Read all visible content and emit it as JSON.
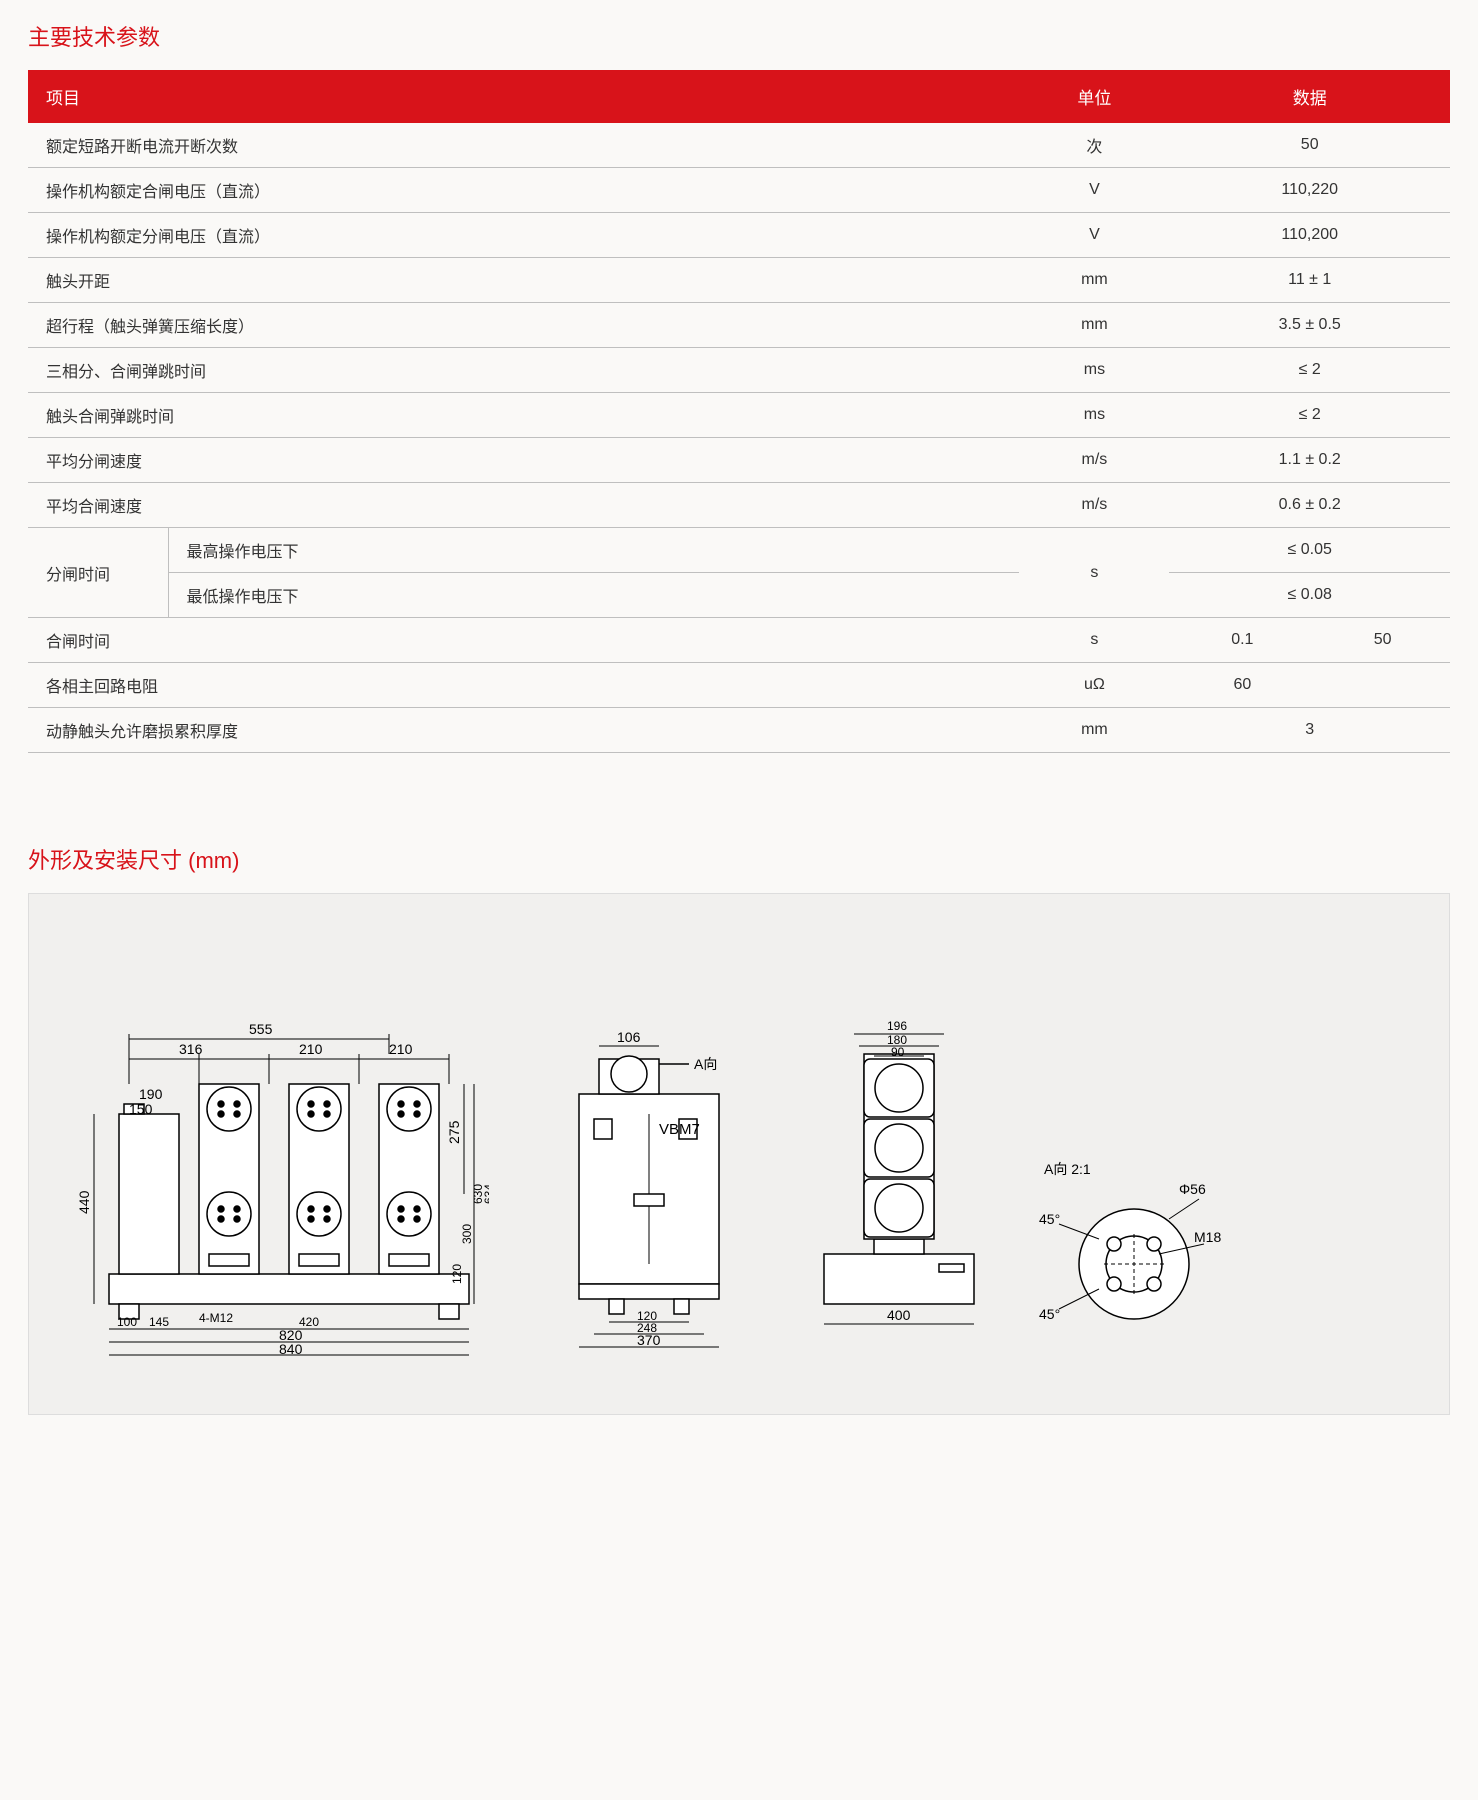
{
  "colors": {
    "accent": "#d8131a",
    "text": "#333333",
    "border": "#bfbfbf",
    "panel_bg": "#f1f0ee",
    "page_bg": "#faf9f7",
    "diagram_stroke": "#000000",
    "diagram_fill": "#ffffff"
  },
  "section1": {
    "title": "主要技术参数",
    "headers": [
      "项目",
      "单位",
      "数据"
    ],
    "rows": [
      {
        "label": "额定短路开断电流开断次数",
        "unit": "次",
        "data": [
          "50"
        ]
      },
      {
        "label": "操作机构额定合闸电压（直流）",
        "unit": "V",
        "data": [
          "110,220"
        ]
      },
      {
        "label": "操作机构额定分闸电压（直流）",
        "unit": "V",
        "data": [
          "110,200"
        ]
      },
      {
        "label": "触头开距",
        "unit": "mm",
        "data": [
          "11 ± 1"
        ]
      },
      {
        "label": "超行程（触头弹簧压缩长度）",
        "unit": "mm",
        "data": [
          "3.5 ± 0.5"
        ]
      },
      {
        "label": "三相分、合闸弹跳时间",
        "unit": "ms",
        "data": [
          "≤ 2"
        ]
      },
      {
        "label": "触头合闸弹跳时间",
        "unit": "ms",
        "data": [
          "≤ 2"
        ]
      },
      {
        "label": "平均分闸速度",
        "unit": "m/s",
        "data": [
          "1.1 ± 0.2"
        ]
      },
      {
        "label": "平均合闸速度",
        "unit": "m/s",
        "data": [
          "0.6 ± 0.2"
        ]
      }
    ],
    "split_row": {
      "label": "分闸时间",
      "unit": "s",
      "subrows": [
        {
          "sublabel": "最高操作电压下",
          "data": [
            "≤ 0.05"
          ]
        },
        {
          "sublabel": "最低操作电压下",
          "data": [
            "≤ 0.08"
          ]
        }
      ]
    },
    "rows2": [
      {
        "label": "合闸时间",
        "unit": "s",
        "data": [
          "0.1",
          "50"
        ]
      },
      {
        "label": "各相主回路电阻",
        "unit": "uΩ",
        "data": [
          "60",
          ""
        ]
      },
      {
        "label": "动静触头允许磨损累积厚度",
        "unit": "mm",
        "data": [
          "3"
        ]
      }
    ]
  },
  "section2": {
    "title": "外形及安装尺寸 (mm)",
    "diagram": {
      "product_label": "VBM7",
      "view_labels": {
        "arrow": "A向",
        "detail": "A向\n2:1"
      },
      "front": {
        "dims": {
          "555": 555,
          "316": 316,
          "210a": 210,
          "210b": 210,
          "190": 190,
          "150": 150,
          "440": 440,
          "100": 100,
          "145": 145,
          "420": 420,
          "820": 820,
          "840": 840,
          "275": 275,
          "300": 300,
          "630": 630,
          "634": 634,
          "120": 120
        },
        "hole_note": "4-M12"
      },
      "side": {
        "dims": {
          "106": 106,
          "120": 120,
          "248": 248,
          "370": 370
        }
      },
      "rear": {
        "dims": {
          "196": 196,
          "180": 180,
          "90": 90,
          "400": 400
        }
      },
      "detail": {
        "dia": "Φ56",
        "thread": "M18",
        "ang1": "45°",
        "ang2": "45°"
      }
    }
  }
}
